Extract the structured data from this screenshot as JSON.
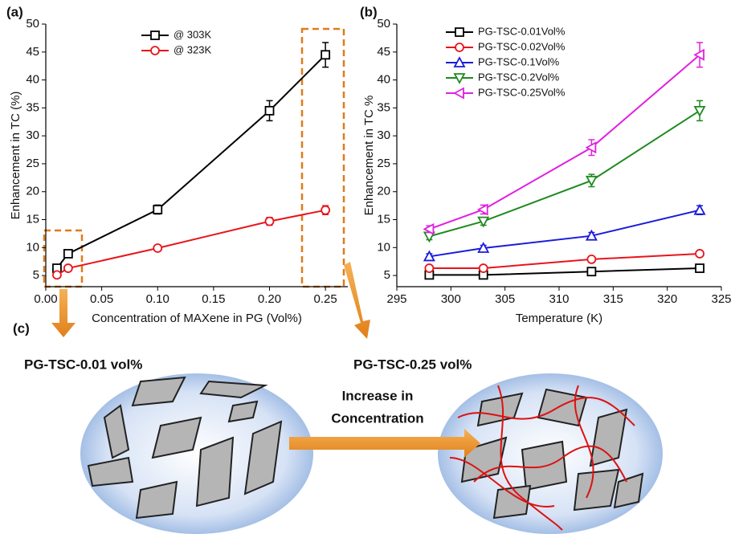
{
  "chart_data": [
    {
      "type": "line",
      "panel": "(a)",
      "x_label": "Concentration of MAXene in PG (Vol%)",
      "y_label": "Enhancement in TC (%)",
      "x": [
        0.01,
        0.02,
        0.1,
        0.2,
        0.25
      ],
      "series": [
        {
          "name": "@ 303K",
          "color": "#000000",
          "marker": "square",
          "values": [
            6.3,
            8.9,
            16.8,
            34.5,
            44.5
          ],
          "errors": [
            0.4,
            0.5,
            0.8,
            1.8,
            2.2
          ]
        },
        {
          "name": "@ 323K",
          "color": "#e8151b",
          "marker": "circle",
          "values": [
            5.1,
            6.3,
            9.9,
            14.7,
            16.7
          ],
          "errors": [
            0.3,
            0.3,
            0.5,
            0.7,
            0.8
          ]
        }
      ],
      "xlim": [
        0,
        0.27
      ],
      "ylim": [
        3,
        50
      ],
      "xticks": [
        {
          "value": 0,
          "label": "0.00"
        },
        0.05,
        {
          "value": 0.1,
          "label": "0.10"
        },
        0.15,
        {
          "value": 0.2,
          "label": "0.20"
        },
        0.25
      ],
      "yticks": [
        5,
        10,
        15,
        20,
        25,
        30,
        35,
        40,
        45,
        50
      ],
      "legend": "upper center"
    },
    {
      "type": "line",
      "panel": "(b)",
      "x_label": "Temperature (K)",
      "y_label": "Enhancement in TC %",
      "x": [
        298,
        303,
        313,
        323
      ],
      "series": [
        {
          "name": "PG-TSC-0.01Vol%",
          "color": "#000000",
          "marker": "square",
          "values": [
            5.1,
            5.1,
            5.7,
            6.3
          ],
          "errors": [
            0.3,
            0.3,
            0.3,
            0.4
          ]
        },
        {
          "name": "PG-TSC-0.02Vol%",
          "color": "#e8151b",
          "marker": "circle",
          "values": [
            6.3,
            6.3,
            7.9,
            8.9
          ],
          "errors": [
            0.3,
            0.3,
            0.3,
            0.3
          ]
        },
        {
          "name": "PG-TSC-0.1Vol%",
          "color": "#1a1adb",
          "marker": "triangle-up",
          "values": [
            8.4,
            9.9,
            12.1,
            16.7
          ],
          "errors": [
            0.5,
            0.5,
            0.6,
            0.8
          ]
        },
        {
          "name": "PG-TSC-0.2Vol%",
          "color": "#1f8a1f",
          "marker": "triangle-down",
          "values": [
            12.0,
            14.7,
            22.0,
            34.5
          ],
          "errors": [
            0.6,
            0.7,
            1.1,
            1.8
          ]
        },
        {
          "name": "PG-TSC-0.25Vol%",
          "color": "#e020e0",
          "marker": "triangle-left",
          "values": [
            13.3,
            16.8,
            27.9,
            44.5
          ],
          "errors": [
            0.6,
            0.8,
            1.4,
            2.2
          ]
        }
      ],
      "xlim": [
        295,
        325
      ],
      "ylim": [
        3,
        50
      ],
      "xticks": [
        295,
        300,
        305,
        310,
        315,
        320,
        325
      ],
      "yticks": [
        5,
        10,
        15,
        20,
        25,
        30,
        35,
        40,
        45,
        50
      ],
      "legend": "upper left"
    }
  ],
  "diagram": {
    "panel": "(c)",
    "left_label": "PG-TSC-0.01 vol%",
    "right_label": "PG-TSC-0.25 vol%",
    "arrow_label": [
      "Increase in",
      "Concentration"
    ]
  }
}
